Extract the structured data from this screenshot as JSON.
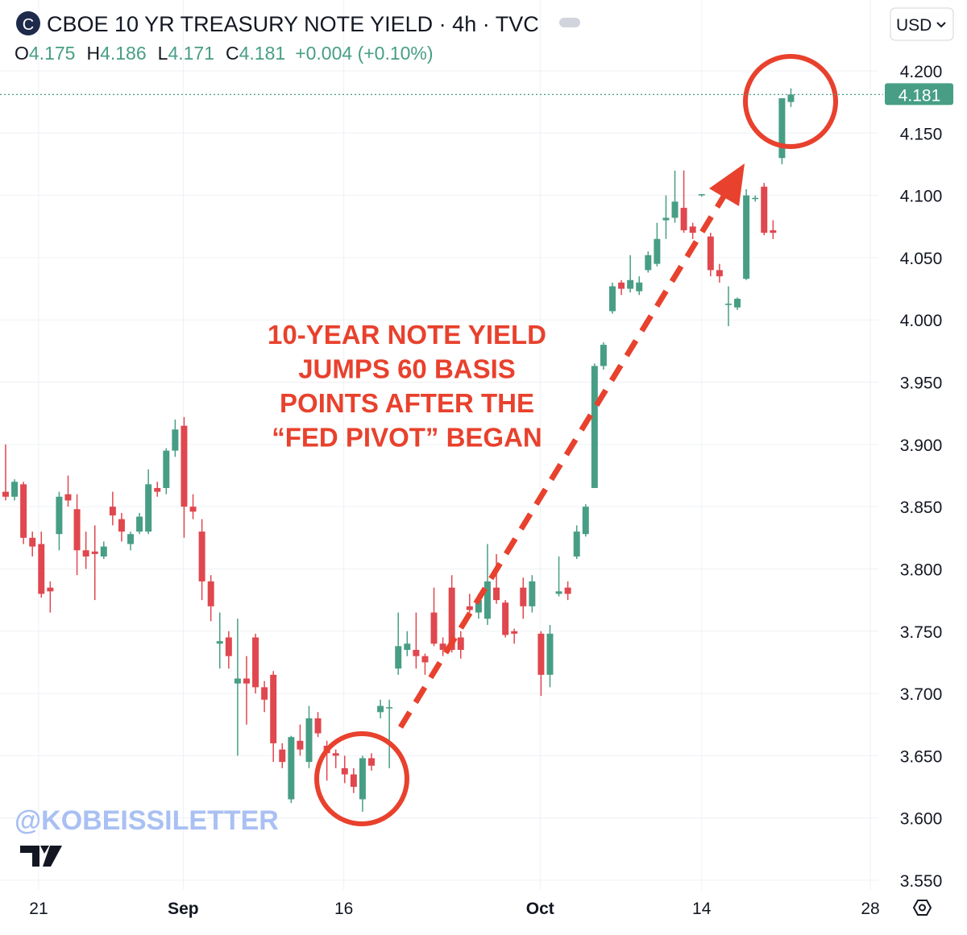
{
  "chart_data": {
    "type": "candlestick",
    "title": "CBOE 10 YR TREASURY NOTE YIELD · 4h · TVC",
    "currency": "USD",
    "ohlc_keys": [
      "O",
      "H",
      "L",
      "C"
    ],
    "change": "+0.004 (+0.10%)",
    "annotation": [
      "10-YEAR NOTE YIELD",
      "JUMPS 60 BASIS",
      "POINTS AFTER THE",
      "“FED PIVOT” BEGAN"
    ],
    "watermark": "@KOBEISSILETTER",
    "up_color": "#479e85",
    "down_color": "#e0474e",
    "annotation_color": "#e8412d",
    "grid": true,
    "open": [
      3.862,
      3.858,
      3.868,
      3.825,
      3.82,
      3.785,
      3.828,
      3.86,
      3.848,
      3.815,
      3.814,
      3.81,
      3.85,
      3.84,
      3.82,
      3.83,
      3.83,
      3.865,
      3.865,
      3.895,
      3.915,
      3.85,
      3.83,
      3.79,
      3.74,
      3.745,
      3.708,
      3.712,
      3.745,
      3.705,
      3.715,
      3.655,
      3.615,
      3.662,
      3.645,
      3.68,
      3.658,
      3.652,
      3.64,
      3.635,
      3.615,
      3.648,
      3.685,
      3.688,
      3.72,
      3.735,
      3.735,
      3.73,
      3.765,
      3.74,
      3.785,
      3.745,
      3.77,
      3.765,
      3.76,
      3.785,
      3.773,
      3.75,
      3.785,
      3.77,
      3.748,
      3.715,
      3.78,
      3.785,
      3.81,
      3.828,
      3.865,
      3.963,
      4.007,
      4.03,
      4.025,
      4.023,
      4.04,
      4.045,
      4.08,
      4.082,
      4.09,
      4.075,
      4.1,
      4.067,
      4.04,
      4.012,
      4.01,
      4.033,
      4.097,
      4.107,
      4.072,
      4.13,
      4.175
    ],
    "high": [
      3.9,
      3.872,
      3.87,
      3.83,
      3.83,
      3.79,
      3.862,
      3.875,
      3.86,
      3.83,
      3.835,
      3.822,
      3.862,
      3.845,
      3.83,
      3.845,
      3.88,
      3.87,
      3.897,
      3.92,
      3.922,
      3.86,
      3.84,
      3.795,
      3.765,
      3.75,
      3.76,
      3.73,
      3.748,
      3.71,
      3.718,
      3.66,
      3.666,
      3.675,
      3.69,
      3.685,
      3.662,
      3.655,
      3.65,
      3.64,
      3.65,
      3.652,
      3.695,
      3.695,
      3.765,
      3.75,
      3.765,
      3.732,
      3.785,
      3.745,
      3.795,
      3.75,
      3.78,
      3.78,
      3.82,
      3.812,
      3.775,
      3.752,
      3.793,
      3.795,
      3.75,
      3.755,
      3.81,
      3.79,
      3.835,
      3.852,
      3.965,
      3.982,
      4.03,
      4.032,
      4.052,
      4.035,
      4.055,
      4.078,
      4.1,
      4.12,
      4.12,
      4.078,
      4.101,
      4.07,
      4.045,
      4.027,
      4.018,
      4.105,
      4.1,
      4.11,
      4.08,
      4.178,
      4.186
    ],
    "low": [
      3.855,
      3.855,
      3.82,
      3.81,
      3.777,
      3.765,
      3.815,
      3.85,
      3.795,
      3.8,
      3.775,
      3.808,
      3.835,
      3.822,
      3.815,
      3.828,
      3.828,
      3.858,
      3.86,
      3.89,
      3.825,
      3.84,
      3.775,
      3.758,
      3.72,
      3.72,
      3.65,
      3.675,
      3.7,
      3.685,
      3.645,
      3.64,
      3.612,
      3.65,
      3.64,
      3.665,
      3.63,
      3.64,
      3.628,
      3.62,
      3.605,
      3.638,
      3.68,
      3.64,
      3.715,
      3.73,
      3.72,
      3.715,
      3.738,
      3.73,
      3.733,
      3.728,
      3.765,
      3.76,
      3.755,
      3.772,
      3.745,
      3.74,
      3.76,
      3.765,
      3.698,
      3.705,
      3.778,
      3.775,
      3.808,
      3.826,
      3.865,
      3.96,
      4.005,
      4.02,
      4.022,
      4.02,
      4.038,
      4.043,
      4.065,
      4.078,
      4.07,
      4.065,
      4.099,
      4.035,
      4.03,
      3.995,
      4.008,
      4.032,
      4.095,
      4.068,
      4.065,
      4.125,
      4.171
    ],
    "close": [
      3.858,
      3.87,
      3.825,
      3.818,
      3.78,
      3.782,
      3.858,
      3.855,
      3.815,
      3.81,
      3.812,
      3.818,
      3.843,
      3.83,
      3.828,
      3.842,
      3.868,
      3.862,
      3.895,
      3.912,
      3.85,
      3.846,
      3.79,
      3.77,
      3.742,
      3.73,
      3.712,
      3.708,
      3.705,
      3.695,
      3.66,
      3.645,
      3.665,
      3.655,
      3.68,
      3.668,
      3.652,
      3.65,
      3.635,
      3.625,
      3.648,
      3.642,
      3.69,
      3.689,
      3.738,
      3.74,
      3.73,
      3.725,
      3.74,
      3.735,
      3.735,
      3.735,
      3.767,
      3.775,
      3.79,
      3.775,
      3.747,
      3.748,
      3.77,
      3.79,
      3.715,
      3.748,
      3.782,
      3.78,
      3.83,
      3.85,
      3.963,
      3.98,
      4.027,
      4.025,
      4.032,
      4.03,
      4.052,
      4.065,
      4.082,
      4.095,
      4.072,
      4.07,
      4.101,
      4.04,
      4.035,
      4.013,
      4.017,
      4.1,
      4.098,
      4.07,
      4.07,
      4.178,
      4.181
    ],
    "xlim": [
      -0.63,
      97.8
    ],
    "xticks": [
      {
        "value": 3.7,
        "label": "21"
      },
      {
        "value": 19.9,
        "label": "Sep"
      },
      {
        "value": 37.9,
        "label": "16"
      },
      {
        "value": 59.9,
        "label": "Oct"
      },
      {
        "value": 78,
        "label": "14"
      },
      {
        "value": 96.9,
        "label": "28"
      }
    ],
    "ylim": [
      3.55,
      4.2
    ],
    "yticks": [
      {
        "value": 3.55,
        "label": "3.550"
      },
      {
        "value": 3.6,
        "label": "3.600"
      },
      {
        "value": 3.65,
        "label": "3.650"
      },
      {
        "value": 3.7,
        "label": "3.700"
      },
      {
        "value": 3.75,
        "label": "3.750"
      },
      {
        "value": 3.8,
        "label": "3.800"
      },
      {
        "value": 3.85,
        "label": "3.850"
      },
      {
        "value": 3.9,
        "label": "3.900"
      },
      {
        "value": 3.95,
        "label": "3.950"
      },
      {
        "value": 4.0,
        "label": "4.000"
      },
      {
        "value": 4.05,
        "label": "4.050"
      },
      {
        "value": 4.1,
        "label": "4.100"
      },
      {
        "value": 4.15,
        "label": "4.150"
      },
      {
        "value": 4.2,
        "label": "4.200"
      }
    ]
  }
}
